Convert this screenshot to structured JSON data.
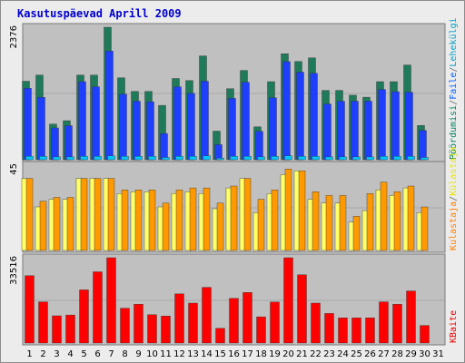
{
  "chart_data": {
    "type": "bar",
    "title": "Kasutuspäevad Aprill 2009",
    "categories": [
      "1",
      "2",
      "3",
      "4",
      "5",
      "6",
      "7",
      "8",
      "9",
      "10",
      "11",
      "12",
      "13",
      "14",
      "15",
      "16",
      "17",
      "18",
      "19",
      "20",
      "21",
      "22",
      "23",
      "24",
      "25",
      "26",
      "27",
      "28",
      "29",
      "30",
      "31"
    ],
    "weekend_days": [
      "4",
      "5",
      "11",
      "12",
      "18",
      "19",
      "25",
      "26"
    ],
    "panels": [
      {
        "ytick": "2376",
        "ylim": [
          0,
          2376
        ],
        "legend": [
          {
            "label": "Pöördumisi",
            "color": "#008060"
          },
          {
            "label": "/",
            "color": "#666666"
          },
          {
            "label": "Faile",
            "color": "#0060ff"
          },
          {
            "label": "/",
            "color": "#666666"
          },
          {
            "label": "Lehekülgi",
            "color": "#00a0c8"
          }
        ],
        "series": [
          {
            "name": "Pöördumisi",
            "color": "#1f7a5a",
            "values": [
              1407,
              1519,
              638,
              700,
              1519,
              1519,
              2376,
              1470,
              1225,
              1225,
              975,
              1456,
              1420,
              1861,
              512,
              1274,
              1601,
              589,
              1400,
              1900,
              1761,
              1826,
              1244,
              1244,
              1157,
              1122,
              1400,
              1400,
              1699,
              615,
              0
            ]
          },
          {
            "name": "Faile",
            "color": "#1f3fff",
            "values": [
              1280,
              1120,
              570,
              610,
              1400,
              1309,
              1950,
              1175,
              1050,
              1040,
              470,
              1309,
              1190,
              1408,
              270,
              1100,
              1390,
              510,
              1112,
              1760,
              1570,
              1550,
              1000,
              1050,
              1050,
              1050,
              1260,
              1220,
              1210,
              525,
              0
            ]
          },
          {
            "name": "Lehekülgi",
            "color": "#00c8ff",
            "values": [
              60,
              60,
              50,
              50,
              60,
              60,
              70,
              60,
              60,
              60,
              40,
              60,
              60,
              70,
              30,
              60,
              60,
              50,
              60,
              70,
              60,
              60,
              50,
              50,
              50,
              50,
              60,
              60,
              60,
              40,
              0
            ]
          }
        ]
      },
      {
        "ytick": "45",
        "ylim": [
          0,
          45
        ],
        "legend": [
          {
            "label": "Kulastaja",
            "color": "#ff8000"
          },
          {
            "label": "/",
            "color": "#666666"
          },
          {
            "label": "Külastaja",
            "color": "#e6e600"
          }
        ],
        "series": [
          {
            "name": "Külastaja",
            "color": "#ffff66",
            "values": [
              38,
              23,
              27,
              27,
              38,
              38,
              38,
              30,
              31,
              31,
              23,
              30,
              31,
              30,
              22,
              33,
              38,
              20,
              30,
              40,
              42,
              27,
              25,
              25,
              15,
              21,
              32,
              29,
              33,
              20,
              0
            ]
          },
          {
            "name": "Kulastaja",
            "color": "#ff9900",
            "values": [
              38,
              26,
              28,
              28,
              38,
              38,
              38,
              32,
              32,
              32,
              25,
              32,
              33,
              33,
              25,
              34,
              38,
              27,
              32,
              43,
              42,
              31,
              29,
              29,
              18,
              30,
              36,
              31,
              34,
              23,
              0
            ]
          }
        ]
      },
      {
        "ytick": "33516",
        "ylim": [
          0,
          33516
        ],
        "legend": [
          {
            "label": "KBaite",
            "color": "#e60000"
          }
        ],
        "series": [
          {
            "name": "KBaite",
            "color": "#ff0000",
            "values": [
              26500,
              16180,
              10680,
              11000,
              20900,
              28000,
              33516,
              13700,
              15260,
              11110,
              10610,
              19330,
              15690,
              21900,
              5820,
              17560,
              19890,
              10290,
              16120,
              33516,
              26810,
              15690,
              11640,
              9910,
              9910,
              9910,
              16190,
              15260,
              20450,
              6930,
              0
            ]
          }
        ]
      }
    ]
  }
}
